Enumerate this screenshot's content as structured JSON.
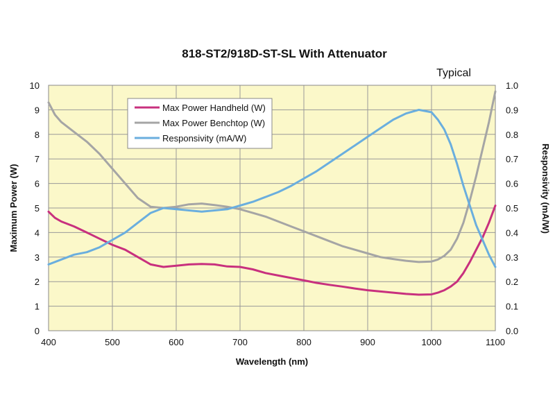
{
  "chart_data": {
    "type": "line",
    "title": "818-ST2/918D-ST-SL With Attenuator",
    "subtitle": "Typical",
    "xlabel": "Wavelength (nm)",
    "ylabel_left": "Maximum Power (W)",
    "ylabel_right": "Responsivity (mA/W)",
    "xlim": [
      400,
      1100
    ],
    "ylim_left": [
      0,
      10
    ],
    "ylim_right": [
      0.0,
      1.0
    ],
    "x_ticks": [
      "400",
      "500",
      "600",
      "700",
      "800",
      "900",
      "1000",
      "1100"
    ],
    "y_left_ticks": [
      "0",
      "1",
      "2",
      "3",
      "4",
      "5",
      "6",
      "7",
      "8",
      "9",
      "10"
    ],
    "y_right_ticks": [
      "0.0",
      "0.1",
      "0.2",
      "0.3",
      "0.4",
      "0.5",
      "0.6",
      "0.7",
      "0.8",
      "0.9",
      "1.0"
    ],
    "grid": true,
    "legend_position": "top-left",
    "colors": {
      "plot_background": "#fbf8c9",
      "grid": "#999999"
    },
    "series": [
      {
        "name": "Max Power Handheld (W)",
        "axis": "left",
        "color": "#c8307e",
        "points": [
          [
            400,
            4.85
          ],
          [
            410,
            4.6
          ],
          [
            420,
            4.45
          ],
          [
            440,
            4.25
          ],
          [
            460,
            4.0
          ],
          [
            480,
            3.75
          ],
          [
            500,
            3.5
          ],
          [
            520,
            3.3
          ],
          [
            540,
            3.0
          ],
          [
            560,
            2.7
          ],
          [
            580,
            2.6
          ],
          [
            600,
            2.65
          ],
          [
            620,
            2.7
          ],
          [
            640,
            2.72
          ],
          [
            660,
            2.7
          ],
          [
            680,
            2.62
          ],
          [
            700,
            2.6
          ],
          [
            720,
            2.5
          ],
          [
            740,
            2.35
          ],
          [
            760,
            2.25
          ],
          [
            780,
            2.15
          ],
          [
            800,
            2.05
          ],
          [
            820,
            1.95
          ],
          [
            840,
            1.87
          ],
          [
            860,
            1.8
          ],
          [
            880,
            1.72
          ],
          [
            900,
            1.65
          ],
          [
            920,
            1.6
          ],
          [
            940,
            1.55
          ],
          [
            960,
            1.5
          ],
          [
            980,
            1.47
          ],
          [
            1000,
            1.48
          ],
          [
            1010,
            1.55
          ],
          [
            1020,
            1.65
          ],
          [
            1030,
            1.8
          ],
          [
            1040,
            2.0
          ],
          [
            1050,
            2.35
          ],
          [
            1060,
            2.8
          ],
          [
            1070,
            3.3
          ],
          [
            1080,
            3.8
          ],
          [
            1090,
            4.4
          ],
          [
            1100,
            5.1
          ]
        ]
      },
      {
        "name": "Max Power Benchtop (W)",
        "axis": "left",
        "color": "#a5a5a5",
        "points": [
          [
            400,
            9.3
          ],
          [
            410,
            8.8
          ],
          [
            420,
            8.5
          ],
          [
            440,
            8.1
          ],
          [
            460,
            7.7
          ],
          [
            480,
            7.2
          ],
          [
            500,
            6.6
          ],
          [
            520,
            6.0
          ],
          [
            540,
            5.4
          ],
          [
            560,
            5.05
          ],
          [
            580,
            5.0
          ],
          [
            600,
            5.05
          ],
          [
            620,
            5.15
          ],
          [
            640,
            5.18
          ],
          [
            660,
            5.12
          ],
          [
            680,
            5.05
          ],
          [
            700,
            4.95
          ],
          [
            720,
            4.8
          ],
          [
            740,
            4.65
          ],
          [
            760,
            4.45
          ],
          [
            780,
            4.25
          ],
          [
            800,
            4.05
          ],
          [
            820,
            3.85
          ],
          [
            840,
            3.65
          ],
          [
            860,
            3.45
          ],
          [
            880,
            3.3
          ],
          [
            900,
            3.15
          ],
          [
            920,
            3.0
          ],
          [
            940,
            2.92
          ],
          [
            960,
            2.85
          ],
          [
            980,
            2.8
          ],
          [
            1000,
            2.82
          ],
          [
            1010,
            2.9
          ],
          [
            1020,
            3.05
          ],
          [
            1030,
            3.3
          ],
          [
            1040,
            3.75
          ],
          [
            1050,
            4.4
          ],
          [
            1060,
            5.3
          ],
          [
            1070,
            6.3
          ],
          [
            1080,
            7.4
          ],
          [
            1090,
            8.5
          ],
          [
            1100,
            9.75
          ]
        ]
      },
      {
        "name": "Responsivity (mA/W)",
        "axis": "right",
        "color": "#6aaede",
        "points": [
          [
            400,
            0.27
          ],
          [
            420,
            0.29
          ],
          [
            440,
            0.31
          ],
          [
            460,
            0.32
          ],
          [
            480,
            0.34
          ],
          [
            500,
            0.37
          ],
          [
            520,
            0.4
          ],
          [
            540,
            0.44
          ],
          [
            560,
            0.48
          ],
          [
            580,
            0.5
          ],
          [
            600,
            0.495
          ],
          [
            620,
            0.49
          ],
          [
            640,
            0.485
          ],
          [
            660,
            0.49
          ],
          [
            680,
            0.495
          ],
          [
            700,
            0.51
          ],
          [
            720,
            0.525
          ],
          [
            740,
            0.545
          ],
          [
            760,
            0.565
          ],
          [
            780,
            0.59
          ],
          [
            800,
            0.62
          ],
          [
            820,
            0.65
          ],
          [
            840,
            0.685
          ],
          [
            860,
            0.72
          ],
          [
            880,
            0.755
          ],
          [
            900,
            0.79
          ],
          [
            920,
            0.825
          ],
          [
            940,
            0.86
          ],
          [
            960,
            0.885
          ],
          [
            980,
            0.9
          ],
          [
            1000,
            0.89
          ],
          [
            1010,
            0.86
          ],
          [
            1020,
            0.82
          ],
          [
            1030,
            0.76
          ],
          [
            1040,
            0.68
          ],
          [
            1050,
            0.59
          ],
          [
            1060,
            0.51
          ],
          [
            1070,
            0.43
          ],
          [
            1080,
            0.37
          ],
          [
            1090,
            0.31
          ],
          [
            1100,
            0.26
          ]
        ]
      }
    ]
  }
}
